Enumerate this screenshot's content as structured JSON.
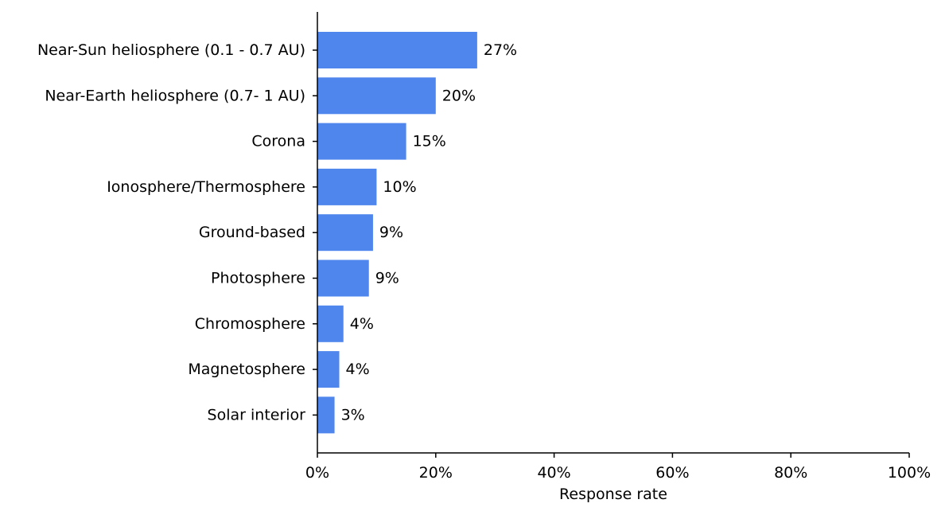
{
  "chart_data": {
    "type": "bar",
    "orientation": "horizontal",
    "categories": [
      "Near-Sun heliosphere (0.1 - 0.7 AU)",
      "Near-Earth heliosphere (0.7- 1 AU)",
      "Corona",
      "Ionosphere/Thermosphere",
      "Ground-based",
      "Photosphere",
      "Chromosphere",
      "Magnetosphere",
      "Solar interior"
    ],
    "values": [
      27,
      20,
      15,
      10,
      9.4,
      8.7,
      4.4,
      3.7,
      2.9
    ],
    "value_labels": [
      "27%",
      "20%",
      "15%",
      "10%",
      "9%",
      "9%",
      "4%",
      "4%",
      "3%"
    ],
    "xlabel": "Response rate",
    "ylabel": "",
    "title": "",
    "xlim": [
      0,
      100
    ],
    "x_ticks": [
      0,
      20,
      40,
      60,
      80,
      100
    ],
    "x_tick_labels": [
      "0%",
      "20%",
      "40%",
      "60%",
      "80%",
      "100%"
    ],
    "grid": false,
    "legend": "none",
    "colors": {
      "bar": "#4f86ed",
      "axis": "#000000",
      "text": "#000000"
    }
  }
}
